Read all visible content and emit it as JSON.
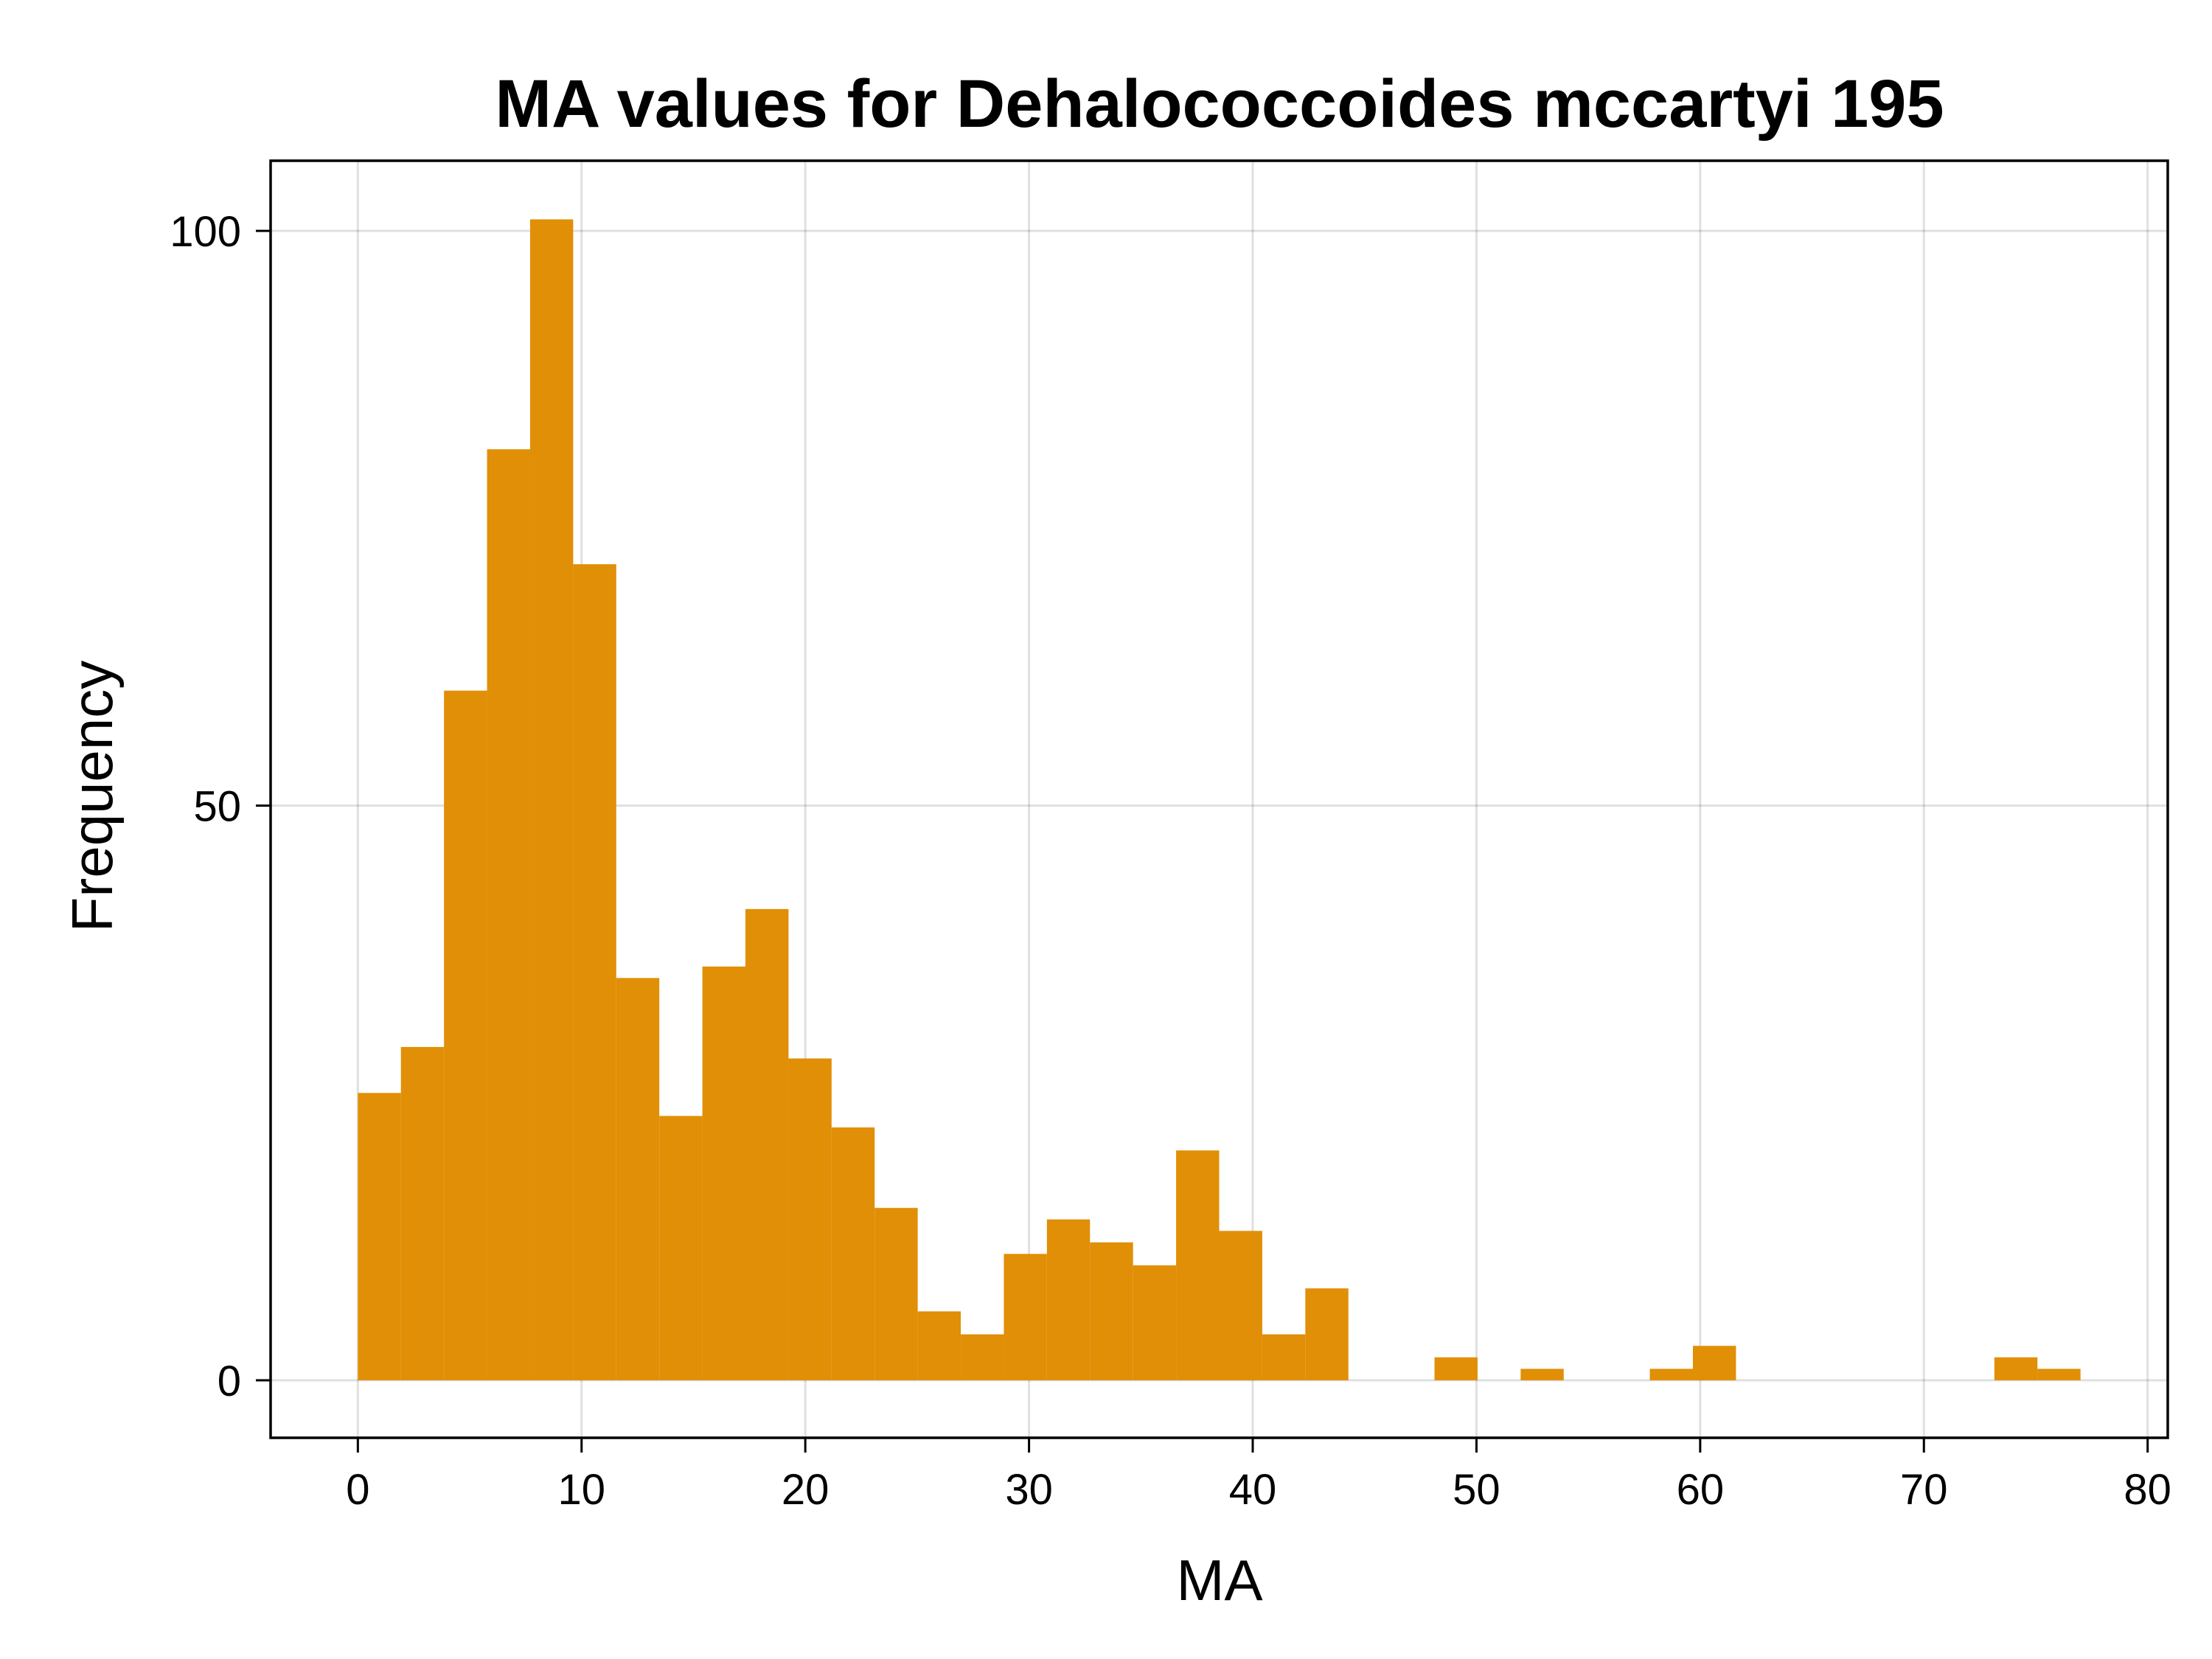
{
  "chart_data": {
    "type": "histogram",
    "title": "MA values for Dehalococcoides mccartyi 195",
    "xlabel": "MA",
    "ylabel": "Frequency",
    "xlim": [
      -3.9,
      80.9
    ],
    "ylim": [
      -5,
      106.1
    ],
    "x_ticks": [
      0,
      10,
      20,
      30,
      40,
      50,
      60,
      70,
      80
    ],
    "y_ticks": [
      0,
      50,
      100
    ],
    "grid": true,
    "legend": "none",
    "bar_color": "#E08F06",
    "bin_edges": [
      0,
      1.925,
      3.85,
      5.775,
      7.7,
      9.625,
      11.55,
      13.475,
      15.4,
      17.325,
      19.25,
      21.175,
      23.1,
      25.025,
      26.95,
      28.875,
      30.8,
      32.725,
      34.65,
      36.575,
      38.5,
      40.425,
      42.35,
      44.275,
      46.2,
      48.125,
      50.05,
      51.975,
      53.9,
      55.825,
      57.75,
      59.675,
      61.6,
      63.525,
      65.45,
      67.375,
      69.3,
      71.225,
      73.15,
      75.075,
      77.0
    ],
    "counts": [
      25,
      29,
      60,
      81,
      101,
      71,
      35,
      23,
      36,
      41,
      28,
      22,
      15,
      6,
      4,
      11,
      14,
      12,
      10,
      20,
      13,
      4,
      8,
      0,
      0,
      2,
      0,
      1,
      0,
      0,
      1,
      3,
      0,
      0,
      0,
      0,
      0,
      0,
      2,
      1
    ]
  }
}
